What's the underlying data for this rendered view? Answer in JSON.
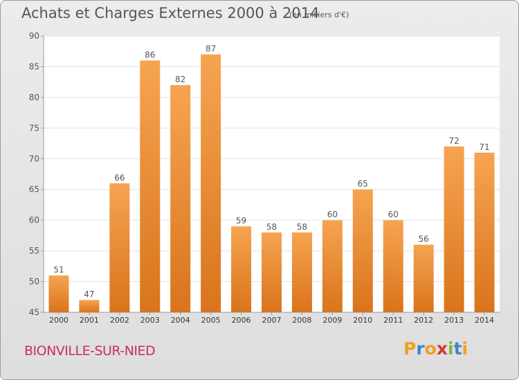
{
  "header": {
    "title": "Achats et Charges Externes 2000 à 2014",
    "unit": "(en milliers d'€)"
  },
  "footer": {
    "commune": "BIONVILLE-SUR-NIED",
    "logo_letters": [
      "P",
      "r",
      "o",
      "x",
      "i",
      "t",
      "i"
    ],
    "logo_colors": [
      "#f0a020",
      "#3d86c6",
      "#f0a020",
      "#d93535",
      "#7cb93b",
      "#3d86c6",
      "#f0a020"
    ]
  },
  "colors": {
    "bar_light": "#f6a451",
    "bar_dark": "#d9741c",
    "plot_bg": "#ffffff",
    "grid": "#e2e2e2",
    "text": "#555555"
  },
  "chart_data": {
    "type": "bar",
    "categories": [
      "2000",
      "2001",
      "2002",
      "2003",
      "2004",
      "2005",
      "2006",
      "2007",
      "2008",
      "2009",
      "2010",
      "2011",
      "2012",
      "2013",
      "2014"
    ],
    "values": [
      51,
      47,
      66,
      86,
      82,
      87,
      59,
      58,
      58,
      60,
      65,
      60,
      56,
      72,
      71
    ],
    "yticks": [
      45,
      50,
      55,
      60,
      65,
      70,
      75,
      80,
      85,
      90
    ],
    "ylim": [
      45,
      90
    ],
    "grid": true,
    "data_labels": true
  }
}
